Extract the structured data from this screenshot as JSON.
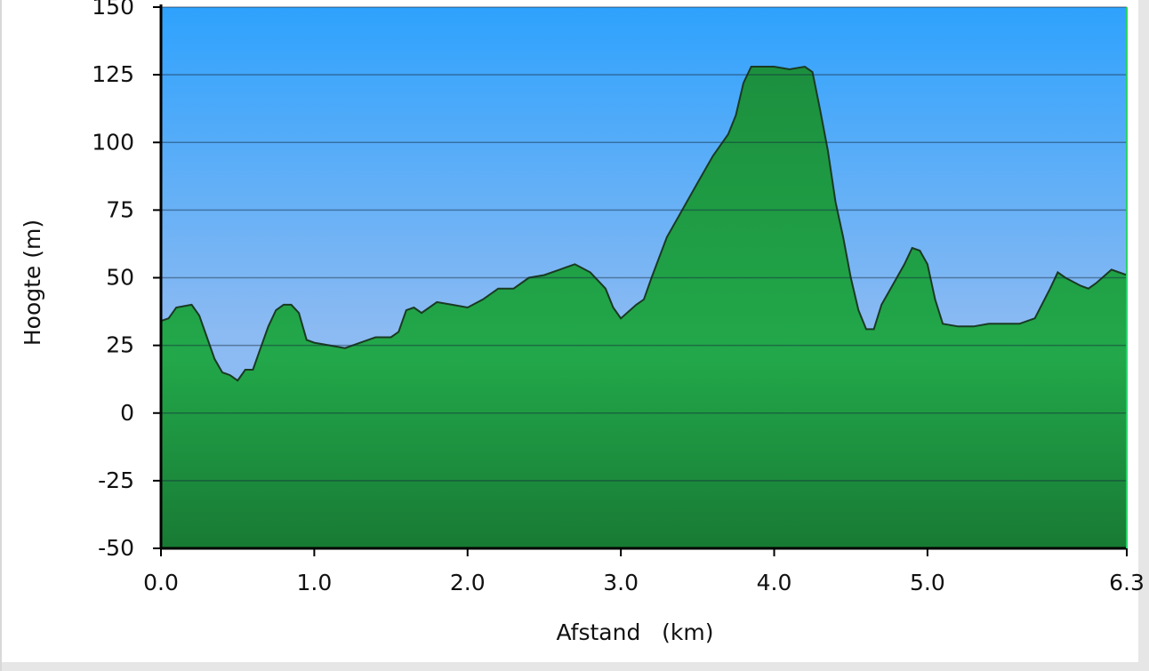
{
  "chart_data": {
    "type": "area",
    "x_label": "Afstand   (km)",
    "y_label": "Hoogte (m)",
    "x": [
      0.0,
      0.05,
      0.1,
      0.2,
      0.25,
      0.3,
      0.35,
      0.4,
      0.45,
      0.5,
      0.55,
      0.6,
      0.65,
      0.7,
      0.75,
      0.8,
      0.85,
      0.9,
      0.95,
      1.0,
      1.1,
      1.2,
      1.3,
      1.4,
      1.5,
      1.55,
      1.6,
      1.65,
      1.7,
      1.75,
      1.8,
      1.9,
      2.0,
      2.1,
      2.2,
      2.3,
      2.4,
      2.5,
      2.6,
      2.7,
      2.8,
      2.9,
      2.95,
      3.0,
      3.1,
      3.15,
      3.2,
      3.3,
      3.4,
      3.5,
      3.6,
      3.7,
      3.75,
      3.8,
      3.85,
      3.9,
      4.0,
      4.1,
      4.2,
      4.25,
      4.3,
      4.35,
      4.4,
      4.45,
      4.5,
      4.55,
      4.6,
      4.65,
      4.7,
      4.75,
      4.8,
      4.85,
      4.9,
      4.95,
      5.0,
      5.05,
      5.1,
      5.2,
      5.3,
      5.4,
      5.5,
      5.6,
      5.7,
      5.8,
      5.85,
      5.9,
      6.0,
      6.05,
      6.1,
      6.2,
      6.3
    ],
    "values": [
      34,
      35,
      39,
      40,
      36,
      28,
      20,
      15,
      14,
      12,
      16,
      16,
      24,
      32,
      38,
      40,
      40,
      37,
      27,
      26,
      25,
      24,
      26,
      28,
      28,
      30,
      38,
      39,
      37,
      39,
      41,
      40,
      39,
      42,
      46,
      46,
      50,
      51,
      53,
      55,
      52,
      46,
      39,
      35,
      40,
      42,
      50,
      65,
      75,
      85,
      95,
      103,
      110,
      122,
      128,
      128,
      128,
      127,
      128,
      126,
      112,
      97,
      78,
      65,
      50,
      38,
      31,
      31,
      40,
      45,
      50,
      55,
      61,
      60,
      55,
      42,
      33,
      32,
      32,
      33,
      33,
      33,
      35,
      46,
      52,
      50,
      47,
      46,
      48,
      53,
      51
    ],
    "color": "#22a448",
    "xlim": [
      0,
      6.3
    ],
    "ylim": [
      -50,
      150
    ],
    "xticks": [
      {
        "value": 0,
        "label": "0.0"
      },
      {
        "value": 1,
        "label": "1.0"
      },
      {
        "value": 2,
        "label": "2.0"
      },
      {
        "value": 3,
        "label": "3.0"
      },
      {
        "value": 4,
        "label": "4.0"
      },
      {
        "value": 5,
        "label": "5.0"
      },
      6.3
    ],
    "yticks": [
      150,
      125,
      100,
      75,
      50,
      25,
      0,
      -25,
      -50
    ],
    "grid": true
  }
}
